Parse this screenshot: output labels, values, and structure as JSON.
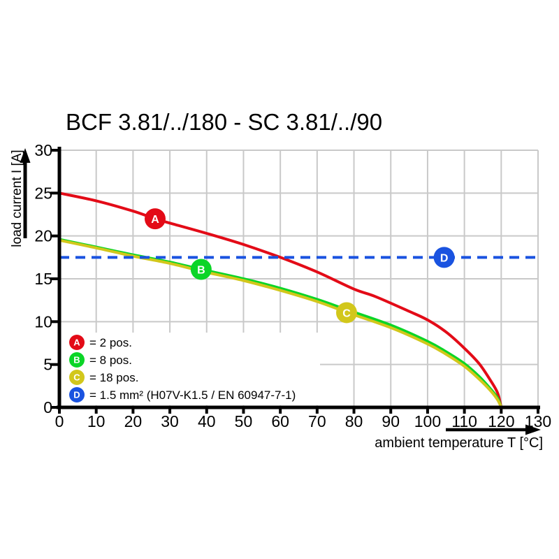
{
  "title": "BCF 3.81/../180 - SC 3.81/../90",
  "colors": {
    "series_a_red": "#e30b17",
    "series_b_green": "#0bd527",
    "series_c_yellow": "#d2c71b",
    "series_d_blue": "#1a53e0",
    "grid": "#c9c9c9",
    "axis": "#000000",
    "background": "#ffffff"
  },
  "legend": {
    "items": [
      {
        "letter": "A",
        "color": "#e30b17",
        "label": "= 2 pos."
      },
      {
        "letter": "B",
        "color": "#0bd527",
        "label": "= 8 pos."
      },
      {
        "letter": "C",
        "color": "#d2c71b",
        "label": "= 18 pos."
      },
      {
        "letter": "D",
        "color": "#1a53e0",
        "label": "= 1.5 mm² (H07V-K1.5 / EN 60947-7-1)"
      }
    ]
  },
  "chart_data": {
    "type": "line",
    "title": "BCF 3.81/../180 - SC 3.81/../90",
    "xlabel": "ambient temperature T [°C]",
    "ylabel": "load current I [A]",
    "xlim": [
      0,
      130
    ],
    "ylim": [
      0,
      30
    ],
    "x_ticks": [
      0,
      10,
      20,
      30,
      40,
      50,
      60,
      70,
      80,
      90,
      100,
      110,
      120,
      130
    ],
    "y_ticks": [
      0,
      5,
      10,
      15,
      20,
      25,
      30
    ],
    "grid": true,
    "legend_position": "inside-bottom-left",
    "series": [
      {
        "letter": "A",
        "name": "2 pos.",
        "color": "#e30b17",
        "style": "solid",
        "marker_at": [
          26,
          22
        ],
        "points": [
          [
            0,
            25
          ],
          [
            10,
            24.1
          ],
          [
            20,
            22.9
          ],
          [
            26,
            22
          ],
          [
            30,
            21.5
          ],
          [
            40,
            20.3
          ],
          [
            50,
            19.0
          ],
          [
            60,
            17.5
          ],
          [
            70,
            15.8
          ],
          [
            80,
            13.8
          ],
          [
            86,
            12.9
          ],
          [
            95,
            11.2
          ],
          [
            100,
            10.2
          ],
          [
            105,
            8.8
          ],
          [
            110,
            6.9
          ],
          [
            114,
            5.1
          ],
          [
            117,
            3.2
          ],
          [
            119,
            1.7
          ],
          [
            120,
            0
          ]
        ]
      },
      {
        "letter": "B",
        "name": "8 pos.",
        "color": "#0bd527",
        "style": "solid",
        "marker_at": [
          38.5,
          16.1
        ],
        "points": [
          [
            0,
            19.6
          ],
          [
            10,
            18.7
          ],
          [
            20,
            17.8
          ],
          [
            30,
            16.95
          ],
          [
            38.5,
            16.1
          ],
          [
            50,
            15.0
          ],
          [
            60,
            13.9
          ],
          [
            70,
            12.6
          ],
          [
            78,
            11.4
          ],
          [
            90,
            9.6
          ],
          [
            100,
            7.7
          ],
          [
            105,
            6.5
          ],
          [
            110,
            5.1
          ],
          [
            114,
            3.6
          ],
          [
            117,
            2.2
          ],
          [
            119,
            1.1
          ],
          [
            120,
            0
          ]
        ]
      },
      {
        "letter": "C",
        "name": "18 pos.",
        "color": "#d2c71b",
        "style": "solid",
        "marker_at": [
          78,
          11.05
        ],
        "points": [
          [
            0,
            19.5
          ],
          [
            10,
            18.6
          ],
          [
            20,
            17.65
          ],
          [
            30,
            16.8
          ],
          [
            38.5,
            15.9
          ],
          [
            50,
            14.8
          ],
          [
            60,
            13.65
          ],
          [
            70,
            12.35
          ],
          [
            78,
            11.1
          ],
          [
            90,
            9.3
          ],
          [
            100,
            7.4
          ],
          [
            105,
            6.2
          ],
          [
            110,
            4.8
          ],
          [
            114,
            3.3
          ],
          [
            117,
            2.0
          ],
          [
            119,
            0.9
          ],
          [
            120,
            0
          ]
        ]
      },
      {
        "letter": "D",
        "name": "1.5 mm² (H07V-K1.5 / EN 60947-7-1)",
        "color": "#1a53e0",
        "style": "dashed",
        "marker_at": [
          104.5,
          17.5
        ],
        "points": [
          [
            0,
            17.5
          ],
          [
            130,
            17.5
          ]
        ]
      }
    ]
  }
}
